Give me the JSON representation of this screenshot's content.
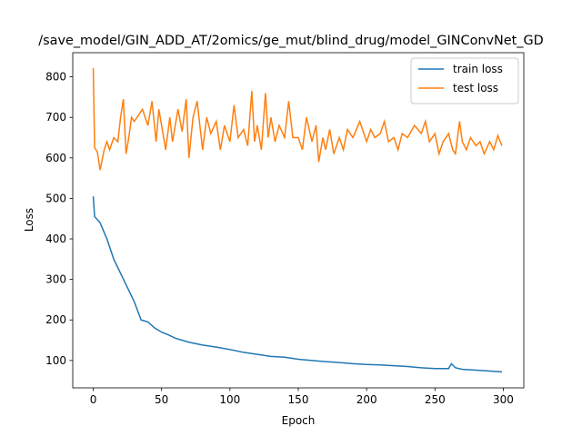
{
  "chart_data": {
    "type": "line",
    "title": "/save_model/GIN_ADD_AT/2omics/ge_mut/blind_drug/model_GINConvNet_GD",
    "xlabel": "Epoch",
    "ylabel": "Loss",
    "xlim": [
      -15,
      315
    ],
    "xticks": [
      0,
      50,
      100,
      150,
      200,
      250,
      300
    ],
    "ylim": [
      32.4,
      859.6
    ],
    "yticks": [
      100,
      200,
      300,
      400,
      500,
      600,
      700,
      800
    ],
    "legend": "upper right",
    "series": [
      {
        "name": "train loss",
        "color": "#1f77b4",
        "x": [
          0,
          1,
          5,
          10,
          15,
          20,
          25,
          30,
          35,
          40,
          45,
          50,
          55,
          60,
          70,
          80,
          90,
          100,
          110,
          120,
          130,
          140,
          150,
          160,
          170,
          180,
          190,
          200,
          210,
          220,
          230,
          240,
          250,
          260,
          262,
          265,
          270,
          280,
          290,
          299
        ],
        "values": [
          505,
          455,
          440,
          400,
          350,
          315,
          280,
          245,
          200,
          195,
          180,
          170,
          163,
          155,
          145,
          138,
          133,
          127,
          120,
          115,
          110,
          108,
          103,
          100,
          97,
          95,
          92,
          90,
          89,
          87,
          85,
          82,
          80,
          80,
          92,
          82,
          78,
          76,
          74,
          72
        ]
      },
      {
        "name": "test loss",
        "color": "#ff7f0e",
        "x": [
          0,
          1,
          3,
          5,
          8,
          10,
          12,
          15,
          18,
          20,
          22,
          24,
          26,
          28,
          30,
          33,
          36,
          40,
          43,
          46,
          48,
          50,
          53,
          56,
          58,
          62,
          65,
          68,
          70,
          73,
          76,
          80,
          83,
          86,
          90,
          93,
          96,
          100,
          103,
          106,
          110,
          113,
          116,
          118,
          120,
          123,
          126,
          128,
          130,
          133,
          136,
          140,
          143,
          146,
          150,
          153,
          156,
          160,
          163,
          165,
          168,
          170,
          173,
          176,
          180,
          183,
          186,
          190,
          195,
          200,
          203,
          206,
          210,
          213,
          216,
          220,
          223,
          226,
          230,
          235,
          240,
          243,
          246,
          250,
          253,
          256,
          260,
          263,
          265,
          268,
          270,
          273,
          276,
          280,
          283,
          286,
          290,
          293,
          296,
          299
        ],
        "values": [
          822,
          625,
          615,
          570,
          620,
          640,
          620,
          650,
          640,
          700,
          745,
          610,
          650,
          700,
          690,
          705,
          720,
          680,
          740,
          640,
          720,
          680,
          620,
          700,
          640,
          720,
          665,
          745,
          600,
          700,
          740,
          620,
          700,
          660,
          690,
          620,
          680,
          640,
          730,
          650,
          670,
          630,
          765,
          640,
          680,
          620,
          760,
          650,
          700,
          640,
          680,
          650,
          740,
          650,
          650,
          620,
          700,
          640,
          680,
          590,
          650,
          620,
          670,
          610,
          650,
          620,
          670,
          650,
          690,
          640,
          670,
          650,
          660,
          690,
          640,
          650,
          620,
          660,
          650,
          680,
          660,
          690,
          640,
          660,
          610,
          640,
          660,
          620,
          610,
          690,
          640,
          620,
          650,
          630,
          640,
          610,
          640,
          620,
          655,
          630
        ]
      }
    ]
  }
}
